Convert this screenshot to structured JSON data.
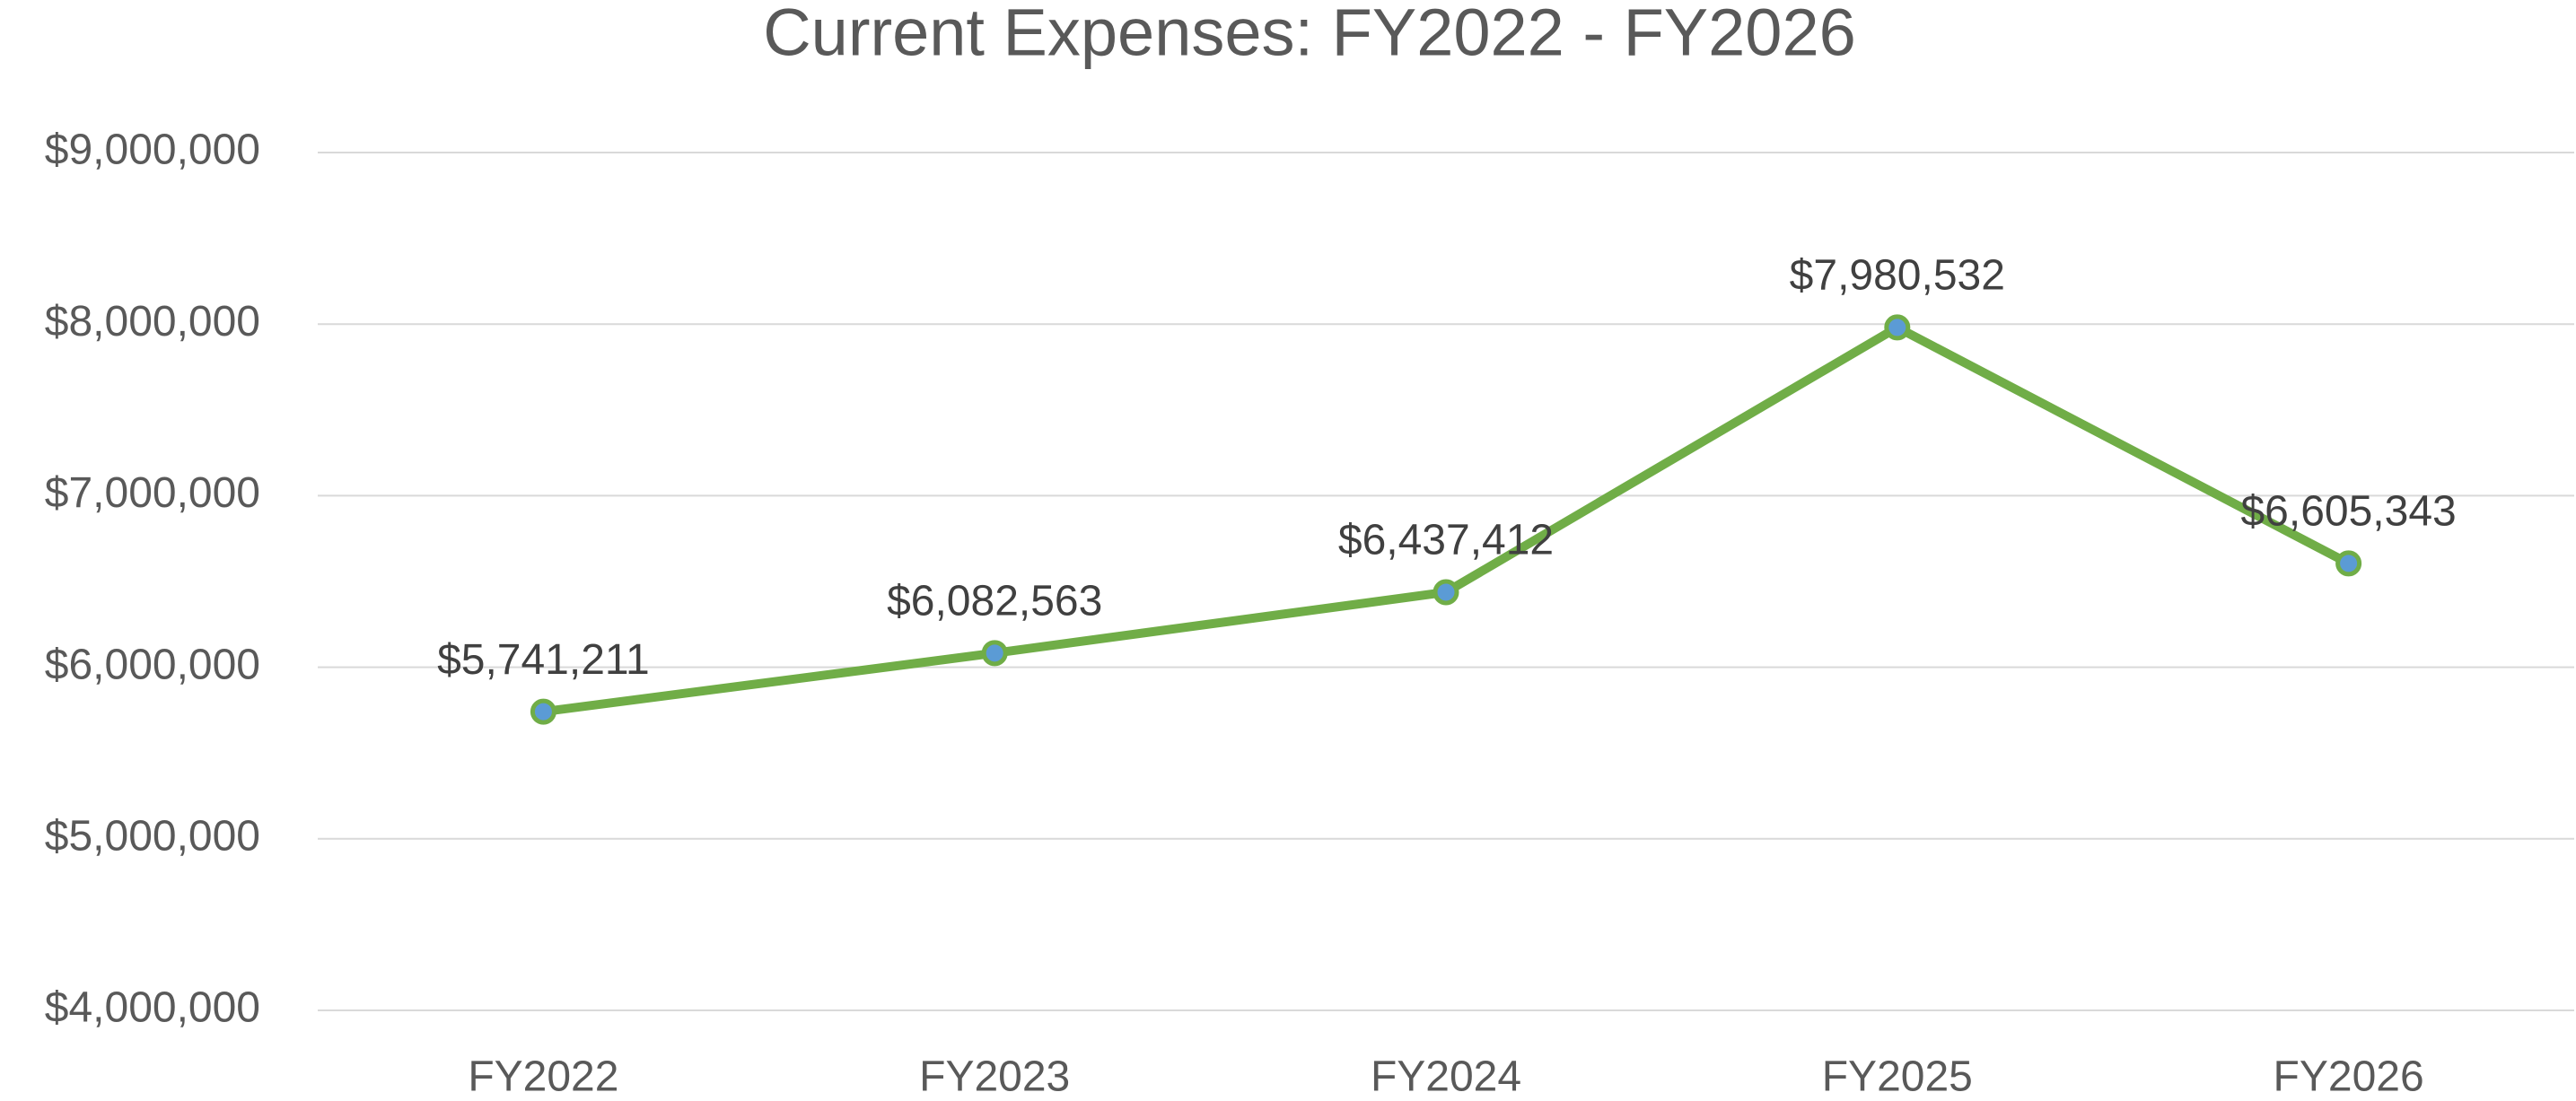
{
  "chart_data": {
    "type": "line",
    "title": "Current Expenses: FY2022 - FY2026",
    "categories": [
      "FY2022",
      "FY2023",
      "FY2024",
      "FY2025",
      "FY2026"
    ],
    "series": [
      {
        "name": "Current Expenses",
        "color": "#70ad47",
        "marker_color": "#5b9bd5",
        "values": [
          5741211,
          6082563,
          6437412,
          7980532,
          6605343
        ],
        "value_labels": [
          "$5,741,211",
          "$6,082,563",
          "$6,437,412",
          "$7,980,532",
          "$6,605,343"
        ]
      }
    ],
    "ylim": [
      4000000,
      9000000
    ],
    "yticks": [
      {
        "value": 4000000,
        "label": "$4,000,000"
      },
      {
        "value": 5000000,
        "label": "$5,000,000"
      },
      {
        "value": 6000000,
        "label": "$6,000,000"
      },
      {
        "value": 7000000,
        "label": "$7,000,000"
      },
      {
        "value": 8000000,
        "label": "$8,000,000"
      },
      {
        "value": 9000000,
        "label": "$9,000,000"
      }
    ],
    "grid": true
  }
}
